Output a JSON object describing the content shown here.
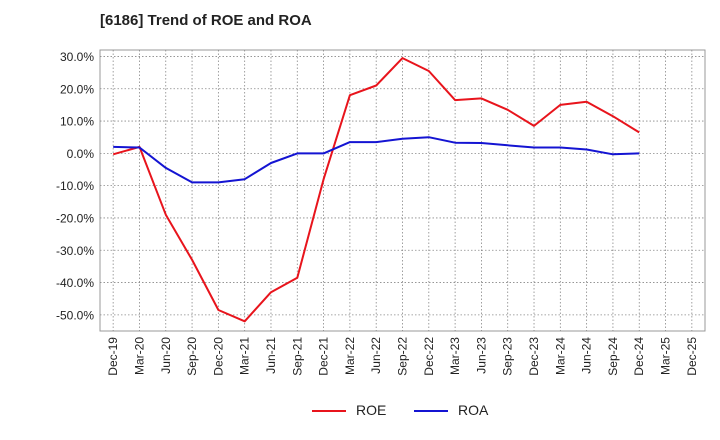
{
  "chart_data": {
    "type": "line",
    "title": "[6186]  Trend of ROE and ROA",
    "ylim": [
      -55,
      32
    ],
    "yticks": [
      30,
      20,
      10,
      0,
      -10,
      -20,
      -30,
      -40,
      -50
    ],
    "ytick_labels": [
      "30.0%",
      "20.0%",
      "10.0%",
      "0.0%",
      "-10.0%",
      "-20.0%",
      "-30.0%",
      "-40.0%",
      "-50.0%"
    ],
    "xticks": [
      "Dec-19",
      "Mar-20",
      "Jun-20",
      "Sep-20",
      "Dec-20",
      "Mar-21",
      "Jun-21",
      "Sep-21",
      "Dec-21",
      "Mar-22",
      "Jun-22",
      "Sep-22",
      "Dec-22",
      "Mar-23",
      "Jun-23",
      "Sep-23",
      "Dec-23",
      "Mar-24",
      "Jun-24",
      "Sep-24",
      "Dec-24",
      "Mar-25",
      "Dec-25"
    ],
    "grid": true,
    "legend_position": "bottom",
    "series": [
      {
        "name": "ROE",
        "color": "#e8141c",
        "values": [
          -0.3,
          2.0,
          -19.0,
          -33.0,
          -48.5,
          -52.0,
          -43.0,
          -38.5,
          -8.0,
          18.0,
          21.0,
          29.5,
          25.5,
          16.5,
          17.0,
          13.5,
          8.5,
          15.0,
          16.0,
          11.5,
          6.5
        ]
      },
      {
        "name": "ROA",
        "color": "#1414d2",
        "values": [
          2.0,
          1.8,
          -4.5,
          -9.0,
          -9.0,
          -8.0,
          -3.0,
          0.0,
          0.0,
          3.5,
          3.5,
          4.5,
          5.0,
          3.3,
          3.2,
          2.5,
          1.8,
          1.8,
          1.2,
          -0.3,
          0.0
        ]
      }
    ]
  }
}
